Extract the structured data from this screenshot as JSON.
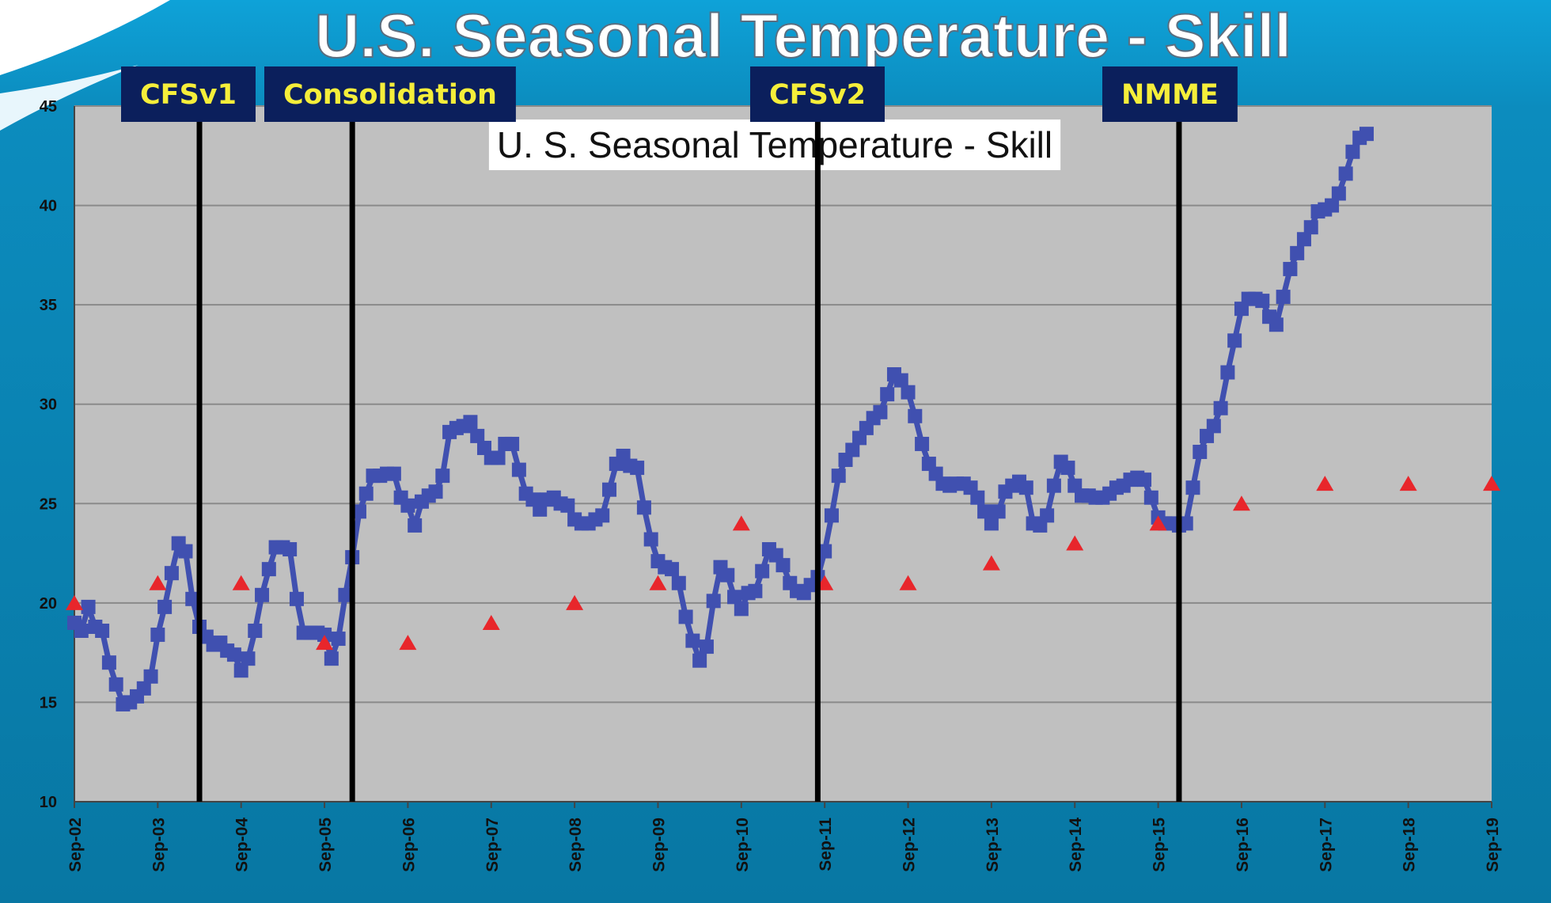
{
  "banner_title": "U.S. Seasonal Temperature - Skill",
  "colors": {
    "background": "#0c88b6",
    "plot_area": "#c0c0c0",
    "skill_series": "#4050b0",
    "target_series": "#e8262b",
    "era_label_bg": "#0b1f5c",
    "era_label_text": "#f5ee3a"
  },
  "chart_data": {
    "type": "line",
    "title": "U. S. Seasonal Temperature - Skill",
    "xlabel": "",
    "ylabel": "",
    "x_range": [
      "2002-09",
      "2019-09"
    ],
    "ylim": [
      10,
      45
    ],
    "yticks": [
      10,
      15,
      20,
      25,
      30,
      35,
      40,
      45
    ],
    "xtick_labels": [
      "Sep-02",
      "Sep-03",
      "Sep-04",
      "Sep-05",
      "Sep-06",
      "Sep-07",
      "Sep-08",
      "Sep-09",
      "Sep-10",
      "Sep-11",
      "Sep-12",
      "Sep-13",
      "Sep-14",
      "Sep-15",
      "Sep-16",
      "Sep-17",
      "Sep-18",
      "Sep-19"
    ],
    "grid": "horizontal",
    "legend": "none",
    "series": [
      {
        "marker": "square",
        "points": [
          [
            "2002-09",
            19.0
          ],
          [
            "2002-10",
            18.6
          ],
          [
            "2002-11",
            19.8
          ],
          [
            "2002-12",
            18.8
          ],
          [
            "2003-01",
            18.6
          ],
          [
            "2003-02",
            17.0
          ],
          [
            "2003-03",
            15.9
          ],
          [
            "2003-04",
            14.9
          ],
          [
            "2003-05",
            15.0
          ],
          [
            "2003-06",
            15.3
          ],
          [
            "2003-07",
            15.7
          ],
          [
            "2003-08",
            16.3
          ],
          [
            "2003-09",
            18.4
          ],
          [
            "2003-10",
            19.8
          ],
          [
            "2003-11",
            21.5
          ],
          [
            "2003-12",
            23.0
          ],
          [
            "2004-01",
            22.6
          ],
          [
            "2004-02",
            20.2
          ],
          [
            "2004-03",
            18.8
          ],
          [
            "2004-04",
            18.3
          ],
          [
            "2004-05",
            17.9
          ],
          [
            "2004-06",
            18.0
          ],
          [
            "2004-07",
            17.6
          ],
          [
            "2004-08",
            17.4
          ],
          [
            "2004-09",
            16.6
          ],
          [
            "2004-10",
            17.2
          ],
          [
            "2004-11",
            18.6
          ],
          [
            "2004-12",
            20.4
          ],
          [
            "2005-01",
            21.7
          ],
          [
            "2005-02",
            22.8
          ],
          [
            "2005-03",
            22.8
          ],
          [
            "2005-04",
            22.7
          ],
          [
            "2005-05",
            20.2
          ],
          [
            "2005-06",
            18.5
          ],
          [
            "2005-07",
            18.5
          ],
          [
            "2005-08",
            18.5
          ],
          [
            "2005-09",
            18.4
          ],
          [
            "2005-10",
            17.2
          ],
          [
            "2005-11",
            18.2
          ],
          [
            "2005-12",
            20.4
          ],
          [
            "2006-01",
            22.3
          ],
          [
            "2006-02",
            24.6
          ],
          [
            "2006-03",
            25.5
          ],
          [
            "2006-04",
            26.4
          ],
          [
            "2006-05",
            26.4
          ],
          [
            "2006-06",
            26.5
          ],
          [
            "2006-07",
            26.5
          ],
          [
            "2006-08",
            25.3
          ],
          [
            "2006-09",
            24.9
          ],
          [
            "2006-10",
            23.9
          ],
          [
            "2006-11",
            25.1
          ],
          [
            "2006-12",
            25.4
          ],
          [
            "2007-01",
            25.6
          ],
          [
            "2007-02",
            26.4
          ],
          [
            "2007-03",
            28.6
          ],
          [
            "2007-04",
            28.8
          ],
          [
            "2007-05",
            28.9
          ],
          [
            "2007-06",
            29.1
          ],
          [
            "2007-07",
            28.4
          ],
          [
            "2007-08",
            27.8
          ],
          [
            "2007-09",
            27.3
          ],
          [
            "2007-10",
            27.3
          ],
          [
            "2007-11",
            28.0
          ],
          [
            "2007-12",
            28.0
          ],
          [
            "2008-01",
            26.7
          ],
          [
            "2008-02",
            25.5
          ],
          [
            "2008-03",
            25.2
          ],
          [
            "2008-04",
            24.7
          ],
          [
            "2008-05",
            25.2
          ],
          [
            "2008-06",
            25.3
          ],
          [
            "2008-07",
            25.0
          ],
          [
            "2008-08",
            24.9
          ],
          [
            "2008-09",
            24.2
          ],
          [
            "2008-10",
            24.0
          ],
          [
            "2008-11",
            24.0
          ],
          [
            "2008-12",
            24.2
          ],
          [
            "2009-01",
            24.4
          ],
          [
            "2009-02",
            25.7
          ],
          [
            "2009-03",
            27.0
          ],
          [
            "2009-04",
            27.4
          ],
          [
            "2009-05",
            26.9
          ],
          [
            "2009-06",
            26.8
          ],
          [
            "2009-07",
            24.8
          ],
          [
            "2009-08",
            23.2
          ],
          [
            "2009-09",
            22.1
          ],
          [
            "2009-10",
            21.8
          ],
          [
            "2009-11",
            21.7
          ],
          [
            "2009-12",
            21.0
          ],
          [
            "2010-01",
            19.3
          ],
          [
            "2010-02",
            18.1
          ],
          [
            "2010-03",
            17.1
          ],
          [
            "2010-04",
            17.8
          ],
          [
            "2010-05",
            20.1
          ],
          [
            "2010-06",
            21.8
          ],
          [
            "2010-07",
            21.4
          ],
          [
            "2010-08",
            20.3
          ],
          [
            "2010-09",
            19.7
          ],
          [
            "2010-10",
            20.5
          ],
          [
            "2010-11",
            20.6
          ],
          [
            "2010-12",
            21.6
          ],
          [
            "2011-01",
            22.7
          ],
          [
            "2011-02",
            22.4
          ],
          [
            "2011-03",
            21.9
          ],
          [
            "2011-04",
            21.0
          ],
          [
            "2011-05",
            20.6
          ],
          [
            "2011-06",
            20.5
          ],
          [
            "2011-07",
            20.9
          ],
          [
            "2011-08",
            21.3
          ],
          [
            "2011-09",
            22.6
          ],
          [
            "2011-10",
            24.4
          ],
          [
            "2011-11",
            26.4
          ],
          [
            "2011-12",
            27.2
          ],
          [
            "2012-01",
            27.7
          ],
          [
            "2012-02",
            28.3
          ],
          [
            "2012-03",
            28.8
          ],
          [
            "2012-04",
            29.3
          ],
          [
            "2012-05",
            29.6
          ],
          [
            "2012-06",
            30.5
          ],
          [
            "2012-07",
            31.5
          ],
          [
            "2012-08",
            31.2
          ],
          [
            "2012-09",
            30.6
          ],
          [
            "2012-10",
            29.4
          ],
          [
            "2012-11",
            28.0
          ],
          [
            "2012-12",
            27.0
          ],
          [
            "2013-01",
            26.5
          ],
          [
            "2013-02",
            26.0
          ],
          [
            "2013-03",
            25.9
          ],
          [
            "2013-04",
            26.0
          ],
          [
            "2013-05",
            26.0
          ],
          [
            "2013-06",
            25.8
          ],
          [
            "2013-07",
            25.3
          ],
          [
            "2013-08",
            24.6
          ],
          [
            "2013-09",
            24.0
          ],
          [
            "2013-10",
            24.6
          ],
          [
            "2013-11",
            25.6
          ],
          [
            "2013-12",
            25.9
          ],
          [
            "2014-01",
            26.1
          ],
          [
            "2014-02",
            25.8
          ],
          [
            "2014-03",
            24.0
          ],
          [
            "2014-04",
            23.9
          ],
          [
            "2014-05",
            24.4
          ],
          [
            "2014-06",
            25.9
          ],
          [
            "2014-07",
            27.1
          ],
          [
            "2014-08",
            26.8
          ],
          [
            "2014-09",
            25.9
          ],
          [
            "2014-10",
            25.4
          ],
          [
            "2014-11",
            25.4
          ],
          [
            "2014-12",
            25.3
          ],
          [
            "2015-01",
            25.3
          ],
          [
            "2015-02",
            25.5
          ],
          [
            "2015-03",
            25.8
          ],
          [
            "2015-04",
            25.9
          ],
          [
            "2015-05",
            26.2
          ],
          [
            "2015-06",
            26.3
          ],
          [
            "2015-07",
            26.2
          ],
          [
            "2015-08",
            25.3
          ],
          [
            "2015-09",
            24.3
          ],
          [
            "2015-10",
            24.0
          ],
          [
            "2015-11",
            24.0
          ],
          [
            "2015-12",
            23.9
          ],
          [
            "2016-01",
            24.0
          ],
          [
            "2016-02",
            25.8
          ],
          [
            "2016-03",
            27.6
          ],
          [
            "2016-04",
            28.4
          ],
          [
            "2016-05",
            28.9
          ],
          [
            "2016-06",
            29.8
          ],
          [
            "2016-07",
            31.6
          ],
          [
            "2016-08",
            33.2
          ],
          [
            "2016-09",
            34.8
          ],
          [
            "2016-10",
            35.3
          ],
          [
            "2016-11",
            35.3
          ],
          [
            "2016-12",
            35.2
          ],
          [
            "2017-01",
            34.4
          ],
          [
            "2017-02",
            34.0
          ],
          [
            "2017-03",
            35.4
          ],
          [
            "2017-04",
            36.8
          ],
          [
            "2017-05",
            37.6
          ],
          [
            "2017-06",
            38.3
          ],
          [
            "2017-07",
            38.9
          ],
          [
            "2017-08",
            39.7
          ],
          [
            "2017-09",
            39.8
          ],
          [
            "2017-10",
            40.0
          ],
          [
            "2017-11",
            40.6
          ],
          [
            "2017-12",
            41.6
          ],
          [
            "2018-01",
            42.7
          ],
          [
            "2018-02",
            43.4
          ],
          [
            "2018-03",
            43.6
          ]
        ]
      },
      {
        "marker": "triangle",
        "points": [
          [
            "2002-09",
            20
          ],
          [
            "2003-09",
            21
          ],
          [
            "2004-09",
            21
          ],
          [
            "2005-09",
            18
          ],
          [
            "2006-09",
            18
          ],
          [
            "2007-09",
            19
          ],
          [
            "2008-09",
            20
          ],
          [
            "2009-09",
            21
          ],
          [
            "2010-09",
            24
          ],
          [
            "2011-09",
            21
          ],
          [
            "2012-09",
            21
          ],
          [
            "2013-09",
            22
          ],
          [
            "2014-09",
            23
          ],
          [
            "2015-09",
            24
          ],
          [
            "2016-09",
            25
          ],
          [
            "2017-09",
            26
          ],
          [
            "2018-09",
            26
          ],
          [
            "2019-09",
            26
          ]
        ]
      }
    ],
    "era_markers": [
      {
        "label": "CFSv1",
        "date": "2004-03"
      },
      {
        "label": "Consolidation",
        "date": "2006-01"
      },
      {
        "label": "CFSv2",
        "date": "2011-08"
      },
      {
        "label": "NMME",
        "date": "2015-12"
      }
    ]
  }
}
